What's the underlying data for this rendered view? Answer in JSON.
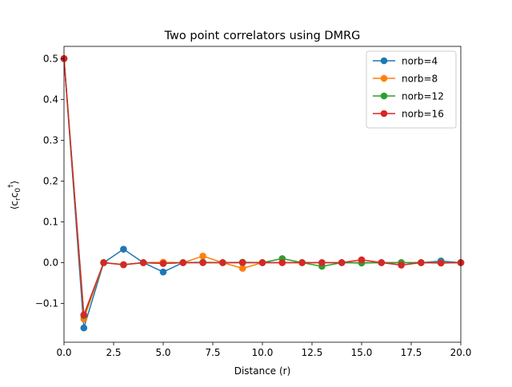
{
  "chart_data": {
    "type": "line",
    "title": "Two point correlators using DMRG",
    "xlabel": "Distance (r)",
    "ylabel": "⟨c_r c_0†⟩",
    "xlim": [
      0,
      20
    ],
    "ylim": [
      -0.195,
      0.53
    ],
    "xticks": [
      0,
      2.5,
      5,
      7.5,
      10,
      12.5,
      15,
      17.5,
      20
    ],
    "xtick_labels": [
      "0.0",
      "2.5",
      "5.0",
      "7.5",
      "10.0",
      "12.5",
      "15.0",
      "17.5",
      "20.0"
    ],
    "yticks": [
      -0.1,
      0,
      0.1,
      0.2,
      0.3,
      0.4,
      0.5
    ],
    "ytick_labels": [
      "−0.1",
      "0.0",
      "0.1",
      "0.2",
      "0.3",
      "0.4",
      "0.5"
    ],
    "grid": false,
    "legend_position": "top-right",
    "series": [
      {
        "name": "norb=4",
        "color": "#1f77b4",
        "x": [
          0,
          1,
          2,
          3,
          4,
          5,
          6,
          7,
          8,
          9,
          10,
          11,
          12,
          13,
          14,
          15,
          16,
          17,
          18,
          19,
          20
        ],
        "values": [
          0.5,
          -0.16,
          0.0,
          0.033,
          0.0,
          -0.023,
          0.0,
          0.0,
          0.0,
          0.0,
          0.0,
          0.0,
          0.0,
          0.0,
          0.0,
          0.0,
          0.0,
          0.0,
          0.0,
          0.004,
          0.0
        ]
      },
      {
        "name": "norb=8",
        "color": "#ff7f0e",
        "x": [
          0,
          1,
          2,
          3,
          4,
          5,
          6,
          7,
          8,
          9,
          10,
          11,
          12,
          13,
          14,
          15,
          16,
          17,
          18,
          19,
          20
        ],
        "values": [
          0.5,
          -0.138,
          0.0,
          -0.005,
          0.0,
          0.001,
          0.0,
          0.016,
          0.0,
          -0.014,
          0.0,
          0.0,
          0.0,
          0.0,
          0.0,
          0.0,
          0.0,
          0.0,
          0.0,
          0.0,
          0.0
        ]
      },
      {
        "name": "norb=12",
        "color": "#2ca02c",
        "x": [
          0,
          1,
          2,
          3,
          4,
          5,
          6,
          7,
          8,
          9,
          10,
          11,
          12,
          13,
          14,
          15,
          16,
          17,
          18,
          19,
          20
        ],
        "values": [
          0.5,
          -0.13,
          0.0,
          -0.005,
          0.0,
          -0.002,
          0.0,
          0.001,
          0.0,
          0.001,
          0.0,
          0.01,
          0.0,
          -0.009,
          0.0,
          -0.001,
          0.0,
          0.0,
          0.0,
          0.0,
          0.0
        ]
      },
      {
        "name": "norb=16",
        "color": "#d62728",
        "x": [
          0,
          1,
          2,
          3,
          4,
          5,
          6,
          7,
          8,
          9,
          10,
          11,
          12,
          13,
          14,
          15,
          16,
          17,
          18,
          19,
          20
        ],
        "values": [
          0.5,
          -0.128,
          0.0,
          -0.005,
          0.0,
          -0.002,
          0.0,
          0.0,
          0.0,
          0.0,
          0.0,
          0.0,
          0.0,
          0.0,
          0.0,
          0.007,
          0.0,
          -0.006,
          0.0,
          -0.001,
          0.0
        ]
      }
    ]
  }
}
